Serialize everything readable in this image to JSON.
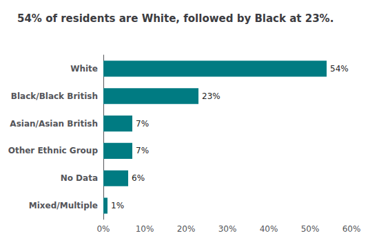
{
  "chart_data": {
    "type": "bar",
    "orientation": "horizontal",
    "title": "54% of residents are White, followed by Black at 23%.",
    "categories": [
      "White",
      "Black/Black British",
      "Asian/Asian British",
      "Other Ethnic Group",
      "No Data",
      "Mixed/Multiple"
    ],
    "values": [
      54,
      23,
      7,
      7,
      6,
      1
    ],
    "value_labels": [
      "54%",
      "23%",
      "7%",
      "7%",
      "6%",
      "1%"
    ],
    "data_labels": true,
    "color": "#007B82",
    "xlim": [
      0,
      60
    ],
    "xticks": [
      {
        "value": 0,
        "label": "0%"
      },
      {
        "value": 10,
        "label": "10%"
      },
      {
        "value": 20,
        "label": "20%"
      },
      {
        "value": 30,
        "label": "30%"
      },
      {
        "value": 40,
        "label": "40%"
      },
      {
        "value": 50,
        "label": "50%"
      },
      {
        "value": 60,
        "label": "60%"
      }
    ],
    "grid": false
  }
}
